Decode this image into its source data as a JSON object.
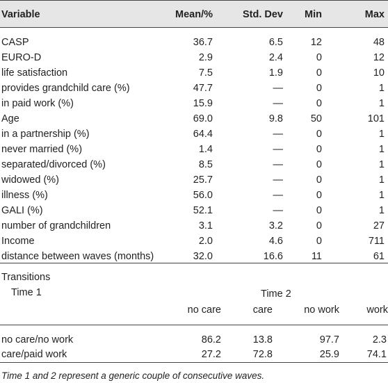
{
  "header": {
    "variable": "Variable",
    "mean": "Mean/%",
    "sd": "Std. Dev",
    "min": "Min",
    "max": "Max"
  },
  "rows": [
    {
      "label": "CASP",
      "mean": "36.7",
      "sd": "6.5",
      "min": "12",
      "max": "48"
    },
    {
      "label": "EURO-D",
      "mean": "2.9",
      "sd": "2.4",
      "min": "0",
      "max": "12"
    },
    {
      "label": "life satisfaction",
      "mean": "7.5",
      "sd": "1.9",
      "min": "0",
      "max": "10"
    },
    {
      "label": "provides grandchild care (%)",
      "mean": "47.7",
      "sd": "—",
      "min": "0",
      "max": "1"
    },
    {
      "label": "in paid work (%)",
      "mean": "15.9",
      "sd": "—",
      "min": "0",
      "max": "1"
    },
    {
      "label": "Age",
      "mean": "69.0",
      "sd": "9.8",
      "min": "50",
      "max": "101"
    },
    {
      "label": "in a partnership (%)",
      "mean": "64.4",
      "sd": "—",
      "min": "0",
      "max": "1"
    },
    {
      "label": "never married (%)",
      "mean": "1.4",
      "sd": "—",
      "min": "0",
      "max": "1"
    },
    {
      "label": "separated/divorced (%)",
      "mean": "8.5",
      "sd": "—",
      "min": "0",
      "max": "1"
    },
    {
      "label": "widowed (%)",
      "mean": "25.7",
      "sd": "—",
      "min": "0",
      "max": "1"
    },
    {
      "label": "illness (%)",
      "mean": "56.0",
      "sd": "—",
      "min": "0",
      "max": "1"
    },
    {
      "label": "GALI (%)",
      "mean": "52.1",
      "sd": "—",
      "min": "0",
      "max": "1"
    },
    {
      "label": "number of grandchildren",
      "mean": "3.1",
      "sd": "3.2",
      "min": "0",
      "max": "27"
    },
    {
      "label": "Income",
      "mean": "2.0",
      "sd": "4.6",
      "min": "0",
      "max": "711"
    },
    {
      "label": "distance between waves (months)",
      "mean": "32.0",
      "sd": "16.6",
      "min": "11",
      "max": "61"
    }
  ],
  "transitions": {
    "title": "Transitions",
    "time1": "Time 1",
    "time2": "Time 2",
    "columns": [
      "no care",
      "care",
      "no work",
      "work"
    ],
    "rows": [
      {
        "label": "no care/no work",
        "values": [
          "86.2",
          "13.8",
          "97.7",
          "2.3"
        ]
      },
      {
        "label": "care/paid work",
        "values": [
          "27.2",
          "72.8",
          "25.9",
          "74.1"
        ]
      }
    ]
  },
  "note": "Time 1 and 2 represent a generic couple of consecutive waves."
}
